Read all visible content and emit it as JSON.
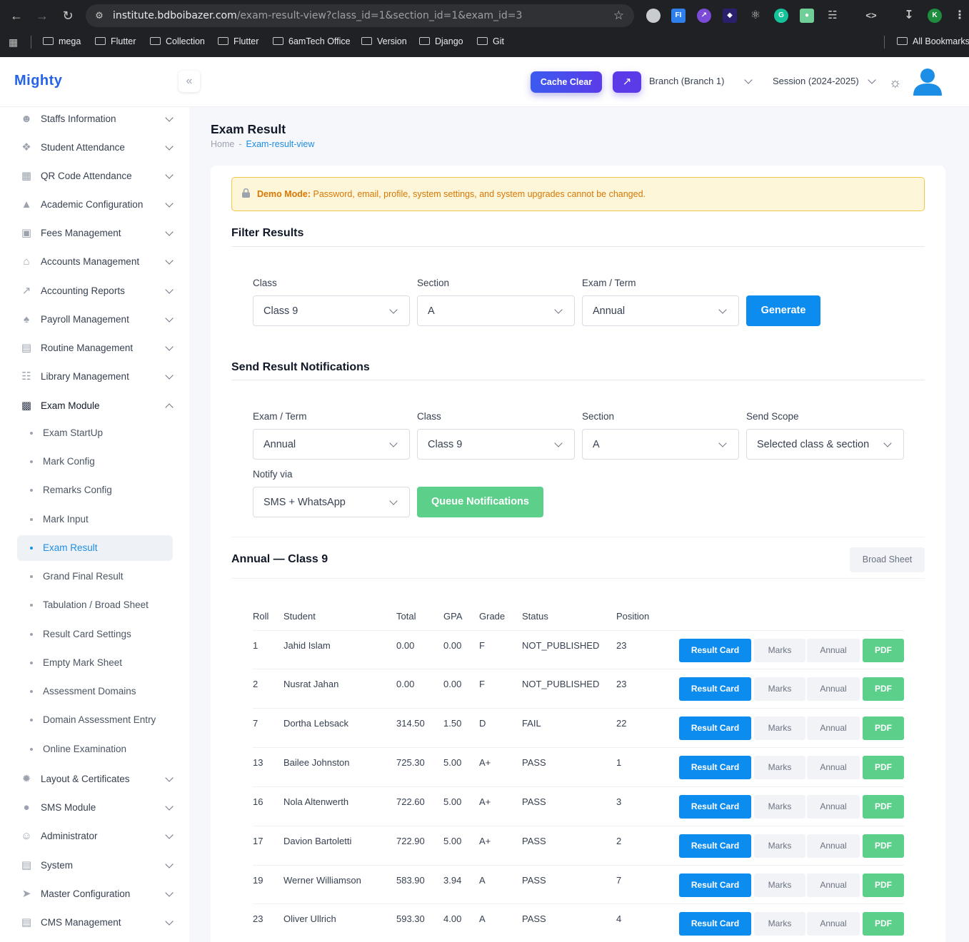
{
  "browser": {
    "url_host": "institute.bdboibazer.com",
    "url_path": "/exam-result-view?class_id=1&section_id=1&exam_id=3",
    "profile_initial": "K",
    "bookmarks": [
      "mega",
      "Flutter",
      "Collection",
      "Flutter",
      "6amTech Office",
      "Version",
      "Django",
      "Git"
    ],
    "all_bookmarks": "All Bookmarks"
  },
  "header": {
    "logo": "Mighty",
    "cache_clear": "Cache Clear",
    "branch": "Branch (Branch 1)",
    "session": "Session (2024-2025)"
  },
  "sidebar": {
    "items_top": [
      {
        "label": "Staffs Information",
        "icon": "users-icon"
      },
      {
        "label": "Student Attendance",
        "icon": "attendance-icon"
      },
      {
        "label": "QR Code Attendance",
        "icon": "qr-icon"
      },
      {
        "label": "Academic Configuration",
        "icon": "academic-icon"
      },
      {
        "label": "Fees Management",
        "icon": "money-icon"
      },
      {
        "label": "Accounts Management",
        "icon": "bank-icon"
      },
      {
        "label": "Accounting Reports",
        "icon": "chart-icon"
      },
      {
        "label": "Payroll Management",
        "icon": "payroll-icon"
      },
      {
        "label": "Routine Management",
        "icon": "map-icon"
      },
      {
        "label": "Library Management",
        "icon": "library-icon"
      }
    ],
    "exam_module": "Exam Module",
    "exam_sub": [
      "Exam StartUp",
      "Mark Config",
      "Remarks Config",
      "Mark Input",
      "Exam Result",
      "Grand Final Result",
      "Tabulation / Broad Sheet",
      "Result Card Settings",
      "Empty Mark Sheet",
      "Assessment Domains",
      "Domain Assessment Entry",
      "Online Examination"
    ],
    "items_bottom": [
      {
        "label": "Layout & Certificates",
        "icon": "certificate-icon"
      },
      {
        "label": "SMS Module",
        "icon": "sms-icon"
      },
      {
        "label": "Administrator",
        "icon": "admin-icon"
      },
      {
        "label": "System",
        "icon": "server-icon"
      },
      {
        "label": "Master Configuration",
        "icon": "rocket-icon"
      },
      {
        "label": "CMS Management",
        "icon": "cms-icon"
      }
    ]
  },
  "page": {
    "title": "Exam Result",
    "breadcrumb_home": "Home",
    "breadcrumb_sep": "-",
    "breadcrumb_current": "Exam-result-view"
  },
  "demo": {
    "label": "Demo Mode:",
    "text": "Password, email, profile, system settings, and system upgrades cannot be changed."
  },
  "filter": {
    "title": "Filter Results",
    "class_label": "Class",
    "class_value": "Class 9",
    "section_label": "Section",
    "section_value": "A",
    "exam_label": "Exam / Term",
    "exam_value": "Annual",
    "generate": "Generate"
  },
  "notify": {
    "title": "Send Result Notifications",
    "exam_label": "Exam / Term",
    "exam_value": "Annual",
    "class_label": "Class",
    "class_value": "Class 9",
    "section_label": "Section",
    "section_value": "A",
    "scope_label": "Send Scope",
    "scope_value": "Selected class & section",
    "via_label": "Notify via",
    "via_value": "SMS + WhatsApp",
    "queue": "Queue Notifications"
  },
  "results": {
    "title": "Annual — Class 9",
    "broad_sheet": "Broad Sheet",
    "columns": [
      "Roll",
      "Student",
      "Total",
      "GPA",
      "Grade",
      "Status",
      "Position"
    ],
    "actions": {
      "result_card": "Result Card",
      "marks": "Marks",
      "annual": "Annual",
      "pdf": "PDF"
    },
    "rows": [
      {
        "roll": "1",
        "student": "Jahid Islam",
        "total": "0.00",
        "gpa": "0.00",
        "grade": "F",
        "status": "NOT_PUBLISHED",
        "position": "23"
      },
      {
        "roll": "2",
        "student": "Nusrat Jahan",
        "total": "0.00",
        "gpa": "0.00",
        "grade": "F",
        "status": "NOT_PUBLISHED",
        "position": "23"
      },
      {
        "roll": "7",
        "student": "Dortha Lebsack",
        "total": "314.50",
        "gpa": "1.50",
        "grade": "D",
        "status": "FAIL",
        "position": "22"
      },
      {
        "roll": "13",
        "student": "Bailee Johnston",
        "total": "725.30",
        "gpa": "5.00",
        "grade": "A+",
        "status": "PASS",
        "position": "1"
      },
      {
        "roll": "16",
        "student": "Nola Altenwerth",
        "total": "722.60",
        "gpa": "5.00",
        "grade": "A+",
        "status": "PASS",
        "position": "3"
      },
      {
        "roll": "17",
        "student": "Davion Bartoletti",
        "total": "722.90",
        "gpa": "5.00",
        "grade": "A+",
        "status": "PASS",
        "position": "2"
      },
      {
        "roll": "19",
        "student": "Werner Williamson",
        "total": "583.90",
        "gpa": "3.94",
        "grade": "A",
        "status": "PASS",
        "position": "7"
      },
      {
        "roll": "23",
        "student": "Oliver Ullrich",
        "total": "593.30",
        "gpa": "4.00",
        "grade": "A",
        "status": "PASS",
        "position": "4"
      }
    ]
  }
}
